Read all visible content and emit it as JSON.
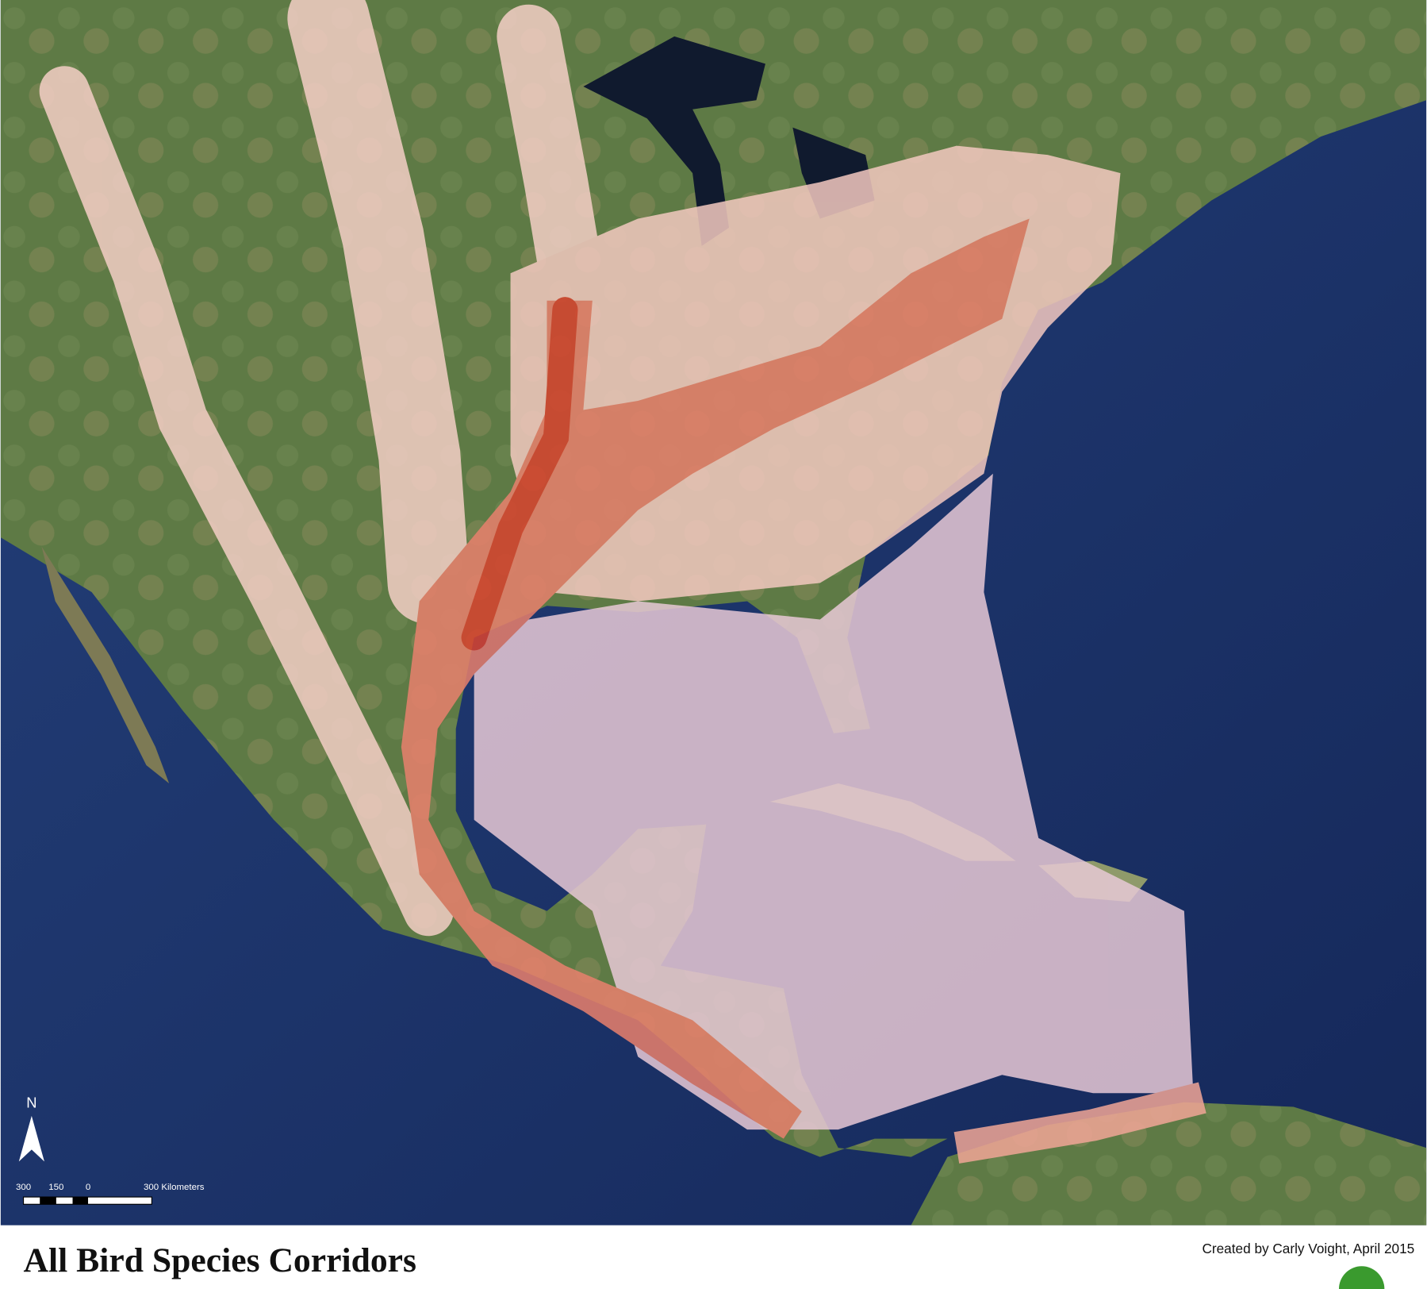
{
  "map": {
    "title": "All Bird Species Corridors",
    "credit": "Created by Carly Voight, April 2015",
    "north": "N",
    "scale": {
      "labels": [
        "300",
        "150",
        "0",
        "300 Kilometers"
      ]
    }
  }
}
